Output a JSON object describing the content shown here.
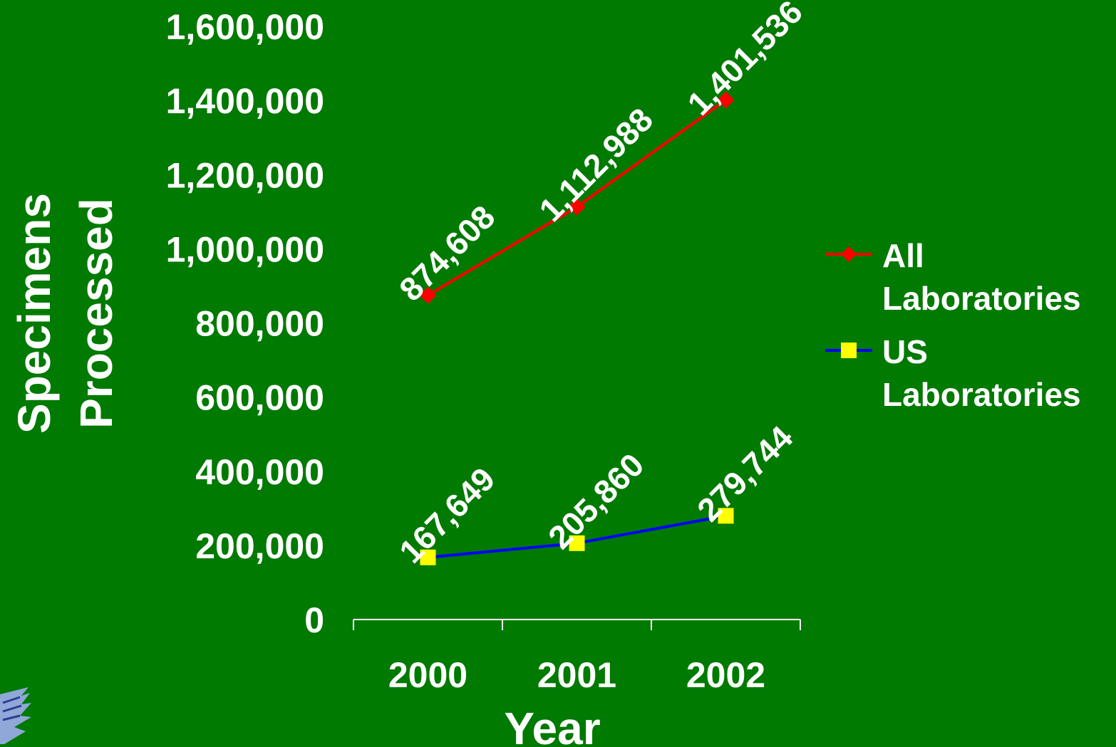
{
  "chart_data": {
    "type": "line",
    "categories": [
      "2000",
      "2001",
      "2002"
    ],
    "series": [
      {
        "name": "All Laboratories",
        "name_lines": [
          "All",
          "Laboratories"
        ],
        "values": [
          874608,
          1112988,
          1401536
        ],
        "labels": [
          "874,608",
          "1,112,988",
          "1,401,536"
        ],
        "color": "#ff0000",
        "marker": "diamond",
        "marker_color": "#ff0000"
      },
      {
        "name": "US Laboratories",
        "name_lines": [
          "US",
          "Laboratories"
        ],
        "values": [
          167649,
          205860,
          279744
        ],
        "labels": [
          "167,649",
          "205,860",
          "279,744"
        ],
        "color": "#0000ff",
        "marker": "square",
        "marker_color": "#ffff00"
      }
    ],
    "y_ticks": [
      "0",
      "200,000",
      "400,000",
      "600,000",
      "800,000",
      "1,000,000",
      "1,200,000",
      "1,400,000",
      "1,600,000"
    ],
    "ylim": [
      0,
      1600000
    ],
    "xlabel": "Year",
    "ylabel_lines": [
      "Specimens",
      "Processed"
    ],
    "grid": false,
    "legend": "right",
    "background": "#007a00"
  },
  "logo": {
    "icon": "eagle-logo-icon"
  }
}
